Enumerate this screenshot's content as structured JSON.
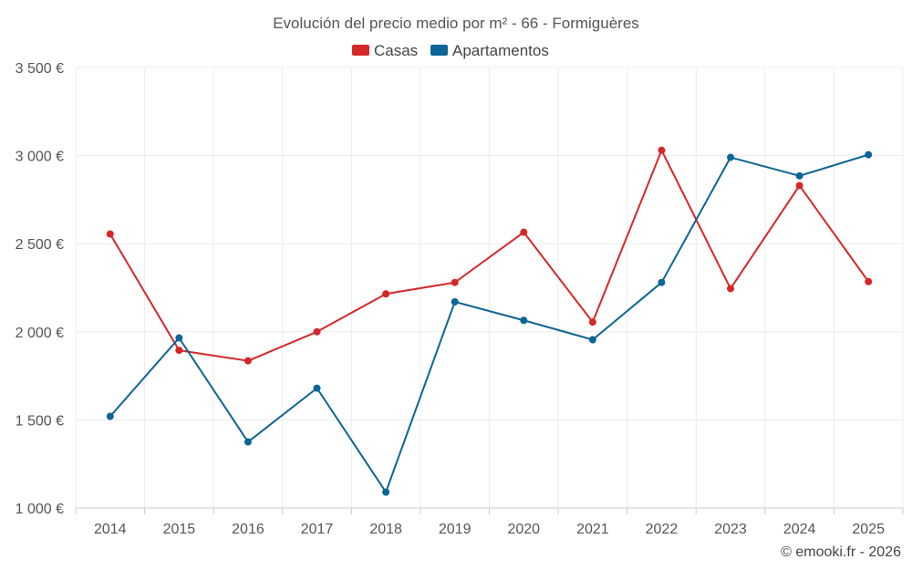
{
  "chart_data": {
    "type": "line",
    "title": "Evolución del precio medio por m² - 66 - Formiguères",
    "categories": [
      "2014",
      "2015",
      "2016",
      "2017",
      "2018",
      "2019",
      "2020",
      "2021",
      "2022",
      "2023",
      "2024",
      "2025"
    ],
    "series": [
      {
        "name": "Casas",
        "color": "#d62728",
        "values": [
          2555,
          1895,
          1835,
          2000,
          2215,
          2280,
          2565,
          2055,
          3030,
          2245,
          2830,
          2285
        ]
      },
      {
        "name": "Apartamentos",
        "color": "#0d6496",
        "values": [
          1520,
          1965,
          1375,
          1680,
          1090,
          2170,
          2065,
          1955,
          2280,
          2990,
          2885,
          3005
        ]
      }
    ],
    "ylim": [
      1000,
      3500
    ],
    "yticks": [
      1000,
      1500,
      2000,
      2500,
      3000,
      3500
    ],
    "ytick_labels": [
      "1 000 €",
      "1 500 €",
      "2 000 €",
      "2 500 €",
      "3 000 €",
      "3 500 €"
    ],
    "xlabel": "",
    "ylabel": "",
    "legend_position": "top-center",
    "grid": true
  },
  "credit": "© emooki.fr - 2026"
}
